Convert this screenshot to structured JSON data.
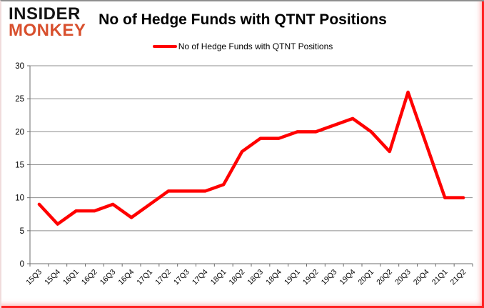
{
  "brand": {
    "line1": "INSIDER",
    "line2": "MONKEY",
    "monkey_color": "#D8502E"
  },
  "header": {
    "title": "No of Hedge Funds with QTNT Positions"
  },
  "legend": {
    "label": "No of Hedge Funds with QTNT Positions",
    "line_color": "#FF0000"
  },
  "chart_data": {
    "type": "line",
    "title": "No of Hedge Funds with QTNT Positions",
    "categories": [
      "15Q3",
      "15Q4",
      "16Q1",
      "16Q2",
      "16Q3",
      "16Q4",
      "17Q1",
      "17Q2",
      "17Q3",
      "17Q4",
      "18Q1",
      "18Q2",
      "18Q3",
      "18Q4",
      "19Q1",
      "19Q2",
      "19Q3",
      "19Q4",
      "20Q1",
      "20Q2",
      "20Q3",
      "20Q4",
      "21Q1",
      "21Q2"
    ],
    "series": [
      {
        "name": "No of Hedge Funds with QTNT Positions",
        "color": "#FF0000",
        "values": [
          9,
          6,
          8,
          8,
          9,
          7,
          9,
          11,
          11,
          11,
          12,
          17,
          19,
          19,
          20,
          20,
          21,
          22,
          20,
          17,
          26,
          18,
          10,
          10
        ]
      }
    ],
    "xlabel": "",
    "ylabel": "",
    "ylim": [
      0,
      30
    ],
    "ytick_step": 5,
    "grid": "horizontal",
    "grid_color": "#8f8f8f",
    "axis_color": "#6e6e6e",
    "tick_label_color": "#000000",
    "legend_position": "top"
  }
}
